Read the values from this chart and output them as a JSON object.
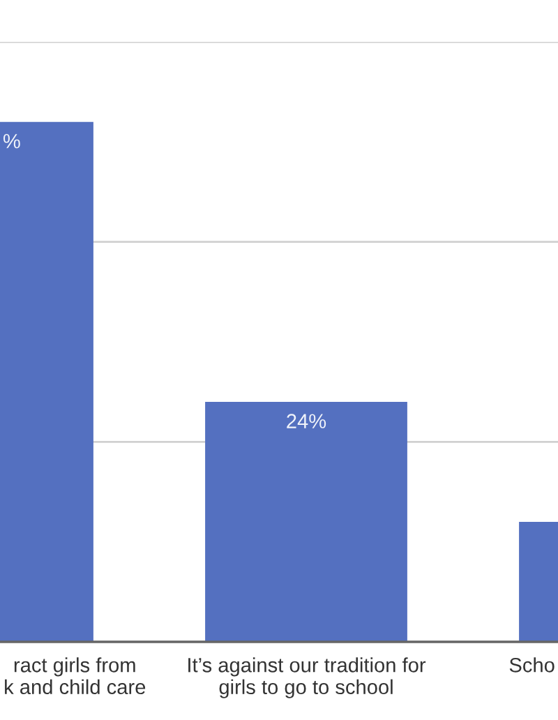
{
  "chart_data": {
    "type": "bar",
    "categories": [
      "ract girls from\nk and child care",
      "It’s against our tradition for\ngirls to go to school",
      "Scho"
    ],
    "values": [
      52,
      24,
      12
    ],
    "value_labels": [
      "%",
      "24%",
      null
    ],
    "color": "#5470c0",
    "ylim": [
      0,
      60
    ],
    "yticks": [
      {
        "value": 0,
        "label": null
      },
      {
        "value": 20,
        "label": null
      },
      {
        "value": 40,
        "label": null
      },
      {
        "value": 60,
        "label": null
      }
    ],
    "tick_labels": "x",
    "grid": "y"
  }
}
